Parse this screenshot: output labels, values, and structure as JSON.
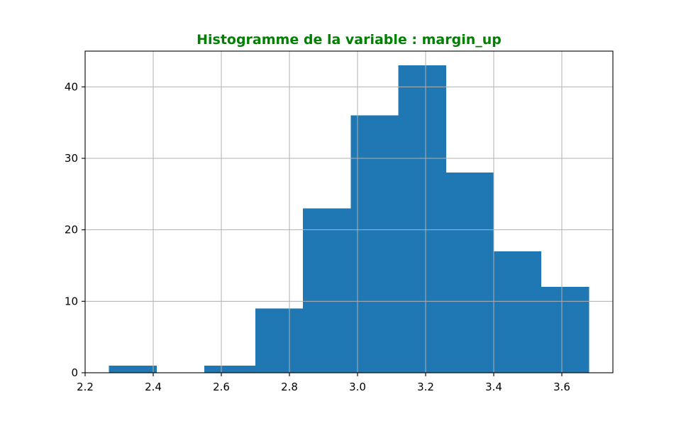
{
  "chart_data": {
    "type": "bar",
    "title": "Histogramme de la variable : margin_up",
    "title_color": "#008000",
    "bar_color": "#1f77b4",
    "grid": true,
    "xlim": [
      2.2,
      3.75
    ],
    "ylim": [
      0,
      45
    ],
    "xticks": [
      "2.2",
      "2.4",
      "2.6",
      "2.8",
      "3.0",
      "3.2",
      "3.4",
      "3.6"
    ],
    "yticks": [
      "0",
      "10",
      "20",
      "30",
      "40"
    ],
    "bins": [
      {
        "x0": 2.27,
        "x1": 2.41,
        "count": 1
      },
      {
        "x0": 2.41,
        "x1": 2.55,
        "count": 0
      },
      {
        "x0": 2.55,
        "x1": 2.7,
        "count": 1
      },
      {
        "x0": 2.7,
        "x1": 2.84,
        "count": 9
      },
      {
        "x0": 2.84,
        "x1": 2.98,
        "count": 23
      },
      {
        "x0": 2.98,
        "x1": 3.12,
        "count": 36
      },
      {
        "x0": 3.12,
        "x1": 3.26,
        "count": 43
      },
      {
        "x0": 3.26,
        "x1": 3.4,
        "count": 28
      },
      {
        "x0": 3.4,
        "x1": 3.54,
        "count": 17
      },
      {
        "x0": 3.54,
        "x1": 3.68,
        "count": 12
      }
    ]
  }
}
